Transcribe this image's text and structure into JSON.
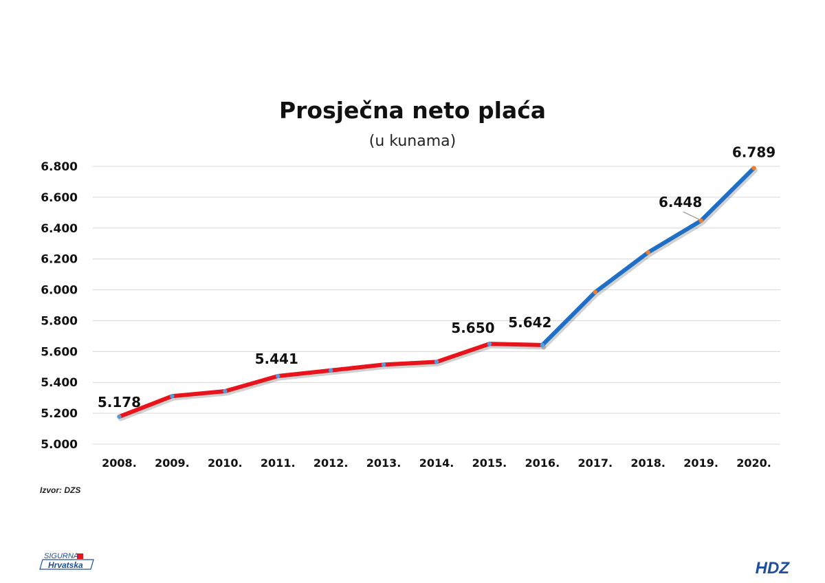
{
  "chart_data": {
    "type": "line",
    "title": "Prosječna neto plaća",
    "subtitle": "(u kunama)",
    "categories": [
      "2008.",
      "2009.",
      "2010.",
      "2011.",
      "2012.",
      "2013.",
      "2014.",
      "2015.",
      "2016.",
      "2017.",
      "2018.",
      "2019.",
      "2020."
    ],
    "values": [
      5178,
      5311,
      5343,
      5441,
      5478,
      5515,
      5533,
      5650,
      5642,
      5985,
      6242,
      6448,
      6789
    ],
    "data_labels": [
      {
        "index": 0,
        "text": "5.178"
      },
      {
        "index": 3,
        "text": "5.441"
      },
      {
        "index": 7,
        "text": "5.650"
      },
      {
        "index": 8,
        "text": "5.642"
      },
      {
        "index": 11,
        "text": "6.448"
      },
      {
        "index": 12,
        "text": "6.789"
      }
    ],
    "segments": [
      {
        "from_index": 0,
        "to_index": 8,
        "line_color": "#e8141b",
        "marker_color": "#5b9bd5"
      },
      {
        "from_index": 8,
        "to_index": 12,
        "line_color": "#1f6fc5",
        "marker_color": "#ed7d31"
      }
    ],
    "ylim": [
      5000,
      6800
    ],
    "yticks": [
      5000,
      5200,
      5400,
      5600,
      5800,
      6000,
      6200,
      6400,
      6600,
      6800
    ],
    "ytick_labels": [
      "5.000",
      "5.200",
      "5.400",
      "5.600",
      "5.800",
      "6.000",
      "6.200",
      "6.400",
      "6.600",
      "6.800"
    ],
    "grid": true,
    "legend": "none",
    "gridline_color": "#d9d9d9"
  },
  "source": "Izvor: DZS",
  "logos": {
    "left_line1": "SIGURNA",
    "left_line2": "Hrvatska",
    "right": "HDZ"
  },
  "colors": {
    "logo_blue": "#1d4f9a",
    "logo_red": "#e8141b"
  }
}
